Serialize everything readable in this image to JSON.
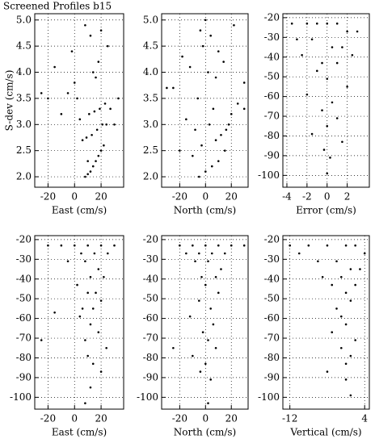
{
  "title": "Screened Profiles b15",
  "chart_data": [
    {
      "type": "scatter",
      "x_label": "East (cm/s)",
      "y_label": "S-dev (cm/s)",
      "xlim": [
        -30,
        37
      ],
      "xticks": [
        -20,
        0,
        20
      ],
      "ylim": [
        1.8,
        5.12
      ],
      "yticks": [
        {
          "value": 2,
          "label": "2.0"
        },
        2.5,
        {
          "value": 3,
          "label": "3.0"
        },
        3.5,
        {
          "value": 4,
          "label": "4.0"
        },
        4.5,
        {
          "value": 5,
          "label": "5.0"
        }
      ],
      "grid": true,
      "color": "#000000",
      "x": [
        8,
        10,
        12,
        14,
        16,
        18,
        20,
        22,
        6,
        9,
        13,
        17,
        21,
        24,
        4,
        11,
        15,
        19,
        23,
        2,
        -5,
        27,
        -10,
        30,
        0,
        14,
        18,
        -15,
        25,
        -20,
        12,
        8,
        20,
        -2,
        16,
        10,
        33,
        -25
      ],
      "y": [
        2.0,
        2.05,
        2.1,
        2.2,
        2.3,
        2.4,
        2.5,
        2.6,
        2.7,
        2.75,
        2.8,
        2.9,
        3.0,
        3.0,
        3.1,
        3.2,
        3.25,
        3.3,
        3.4,
        3.5,
        3.6,
        3.3,
        3.2,
        3.0,
        3.8,
        4.0,
        4.2,
        4.1,
        4.5,
        3.5,
        4.7,
        4.9,
        4.8,
        4.4,
        3.9,
        2.3,
        3.5,
        3.6
      ]
    },
    {
      "type": "scatter",
      "x_label": "North (cm/s)",
      "xlim": [
        -34,
        33
      ],
      "xticks": [
        -20,
        0,
        20
      ],
      "ylim": [
        1.8,
        5.12
      ],
      "yticks": [
        {
          "value": 2,
          "label": "2.0"
        },
        2.5,
        {
          "value": 3,
          "label": "3.0"
        },
        3.5,
        {
          "value": 4,
          "label": "4.0"
        },
        4.5,
        {
          "value": 5,
          "label": "5.0"
        }
      ],
      "grid": true,
      "color": "#000000",
      "x": [
        -5,
        0,
        5,
        10,
        -10,
        15,
        -3,
        8,
        12,
        -8,
        3,
        18,
        -15,
        20,
        -20,
        6,
        -6,
        25,
        -25,
        30,
        2,
        -12,
        14,
        10,
        -2,
        4,
        -18,
        22,
        0,
        8,
        -30,
        30,
        -4,
        16
      ],
      "y": [
        2.0,
        2.1,
        2.2,
        2.3,
        2.4,
        2.5,
        2.6,
        2.7,
        2.8,
        2.9,
        3.0,
        3.0,
        3.1,
        3.2,
        2.5,
        3.3,
        3.5,
        3.4,
        3.7,
        3.8,
        4.0,
        4.1,
        4.2,
        4.4,
        4.5,
        4.7,
        4.3,
        4.9,
        5.0,
        3.9,
        3.7,
        3.3,
        4.8,
        2.9
      ]
    },
    {
      "type": "scatter",
      "x_label": "Error (cm/s)",
      "xlim": [
        -4.4,
        4.2
      ],
      "xticks": [
        -4,
        -2,
        0,
        2
      ],
      "ylim": [
        -106,
        -18
      ],
      "yticks": [
        -20,
        -30,
        -40,
        -50,
        -60,
        -70,
        -80,
        -90,
        -100
      ],
      "grid": true,
      "color": "#000000",
      "x": [
        -3.5,
        -2,
        -1,
        0,
        1,
        2,
        3,
        -3,
        -1.5,
        0.5,
        1.5,
        2.5,
        -2.5,
        -0.5,
        1,
        -1,
        0,
        2,
        -2,
        0.5,
        -0.5,
        1,
        0,
        -1.5,
        1.5,
        -0.3,
        0.3,
        0
      ],
      "y": [
        -23,
        -23,
        -23,
        -23,
        -23,
        -27,
        -27,
        -31,
        -31,
        -35,
        -35,
        -39,
        -39,
        -43,
        -43,
        -47,
        -51,
        -55,
        -59,
        -63,
        -67,
        -71,
        -75,
        -79,
        -83,
        -87,
        -91,
        -99
      ]
    },
    {
      "type": "scatter",
      "x_label": "East (cm/s)",
      "xlim": [
        -30,
        37
      ],
      "xticks": [
        -20,
        0,
        20
      ],
      "ylim": [
        -106,
        -18
      ],
      "yticks": [
        -20,
        -30,
        -40,
        -50,
        -60,
        -70,
        -80,
        -90,
        -100
      ],
      "grid": true,
      "color": "#000000",
      "x": [
        -20,
        -10,
        0,
        10,
        20,
        30,
        5,
        15,
        25,
        -5,
        8,
        18,
        12,
        22,
        2,
        10,
        16,
        20,
        6,
        14,
        -15,
        4,
        12,
        18,
        8,
        24,
        10,
        14,
        -25,
        20,
        12,
        8
      ],
      "y": [
        -23,
        -23,
        -23,
        -23,
        -23,
        -23,
        -27,
        -27,
        -27,
        -31,
        -31,
        -35,
        -39,
        -39,
        -43,
        -47,
        -47,
        -51,
        -55,
        -55,
        -57,
        -59,
        -63,
        -67,
        -71,
        -75,
        -79,
        -83,
        -71,
        -87,
        -95,
        -103
      ]
    },
    {
      "type": "scatter",
      "x_label": "North (cm/s)",
      "xlim": [
        -34,
        33
      ],
      "xticks": [
        -20,
        0,
        20
      ],
      "ylim": [
        -106,
        -18
      ],
      "yticks": [
        -20,
        -30,
        -40,
        -50,
        -60,
        -70,
        -80,
        -90,
        -100
      ],
      "grid": true,
      "color": "#000000",
      "x": [
        -20,
        -10,
        0,
        10,
        20,
        30,
        -15,
        -5,
        5,
        15,
        -8,
        2,
        12,
        -3,
        8,
        0,
        10,
        -5,
        4,
        -12,
        6,
        -2,
        2,
        -25,
        8,
        0,
        -4,
        4,
        -10,
        2
      ],
      "y": [
        -23,
        -23,
        -23,
        -23,
        -23,
        -23,
        -27,
        -27,
        -27,
        -27,
        -31,
        -31,
        -35,
        -39,
        -39,
        -43,
        -47,
        -51,
        -55,
        -59,
        -63,
        -67,
        -71,
        -75,
        -75,
        -83,
        -87,
        -91,
        -79,
        -103
      ]
    },
    {
      "type": "scatter",
      "x_label": "Vertical (cm/s)",
      "xlim": [
        -13.5,
        5
      ],
      "xticks": [
        -12,
        4
      ],
      "ylim": [
        -106,
        -18
      ],
      "yticks": [
        -20,
        -30,
        -40,
        -50,
        -60,
        -70,
        -80,
        -90,
        -100
      ],
      "grid": true,
      "color": "#000000",
      "x": [
        -12,
        -8,
        -4,
        0,
        2,
        4,
        -10,
        -6,
        -2,
        1,
        3,
        -5,
        -1,
        2,
        -3,
        0,
        1,
        -2,
        -1,
        0,
        -3,
        2,
        -1,
        1,
        0,
        -4,
        0,
        1
      ],
      "y": [
        -23,
        -23,
        -23,
        -23,
        -23,
        -27,
        -27,
        -31,
        -31,
        -35,
        -35,
        -39,
        -39,
        -43,
        -43,
        -47,
        -51,
        -55,
        -59,
        -63,
        -67,
        -71,
        -75,
        -79,
        -83,
        -87,
        -91,
        -99
      ]
    }
  ]
}
